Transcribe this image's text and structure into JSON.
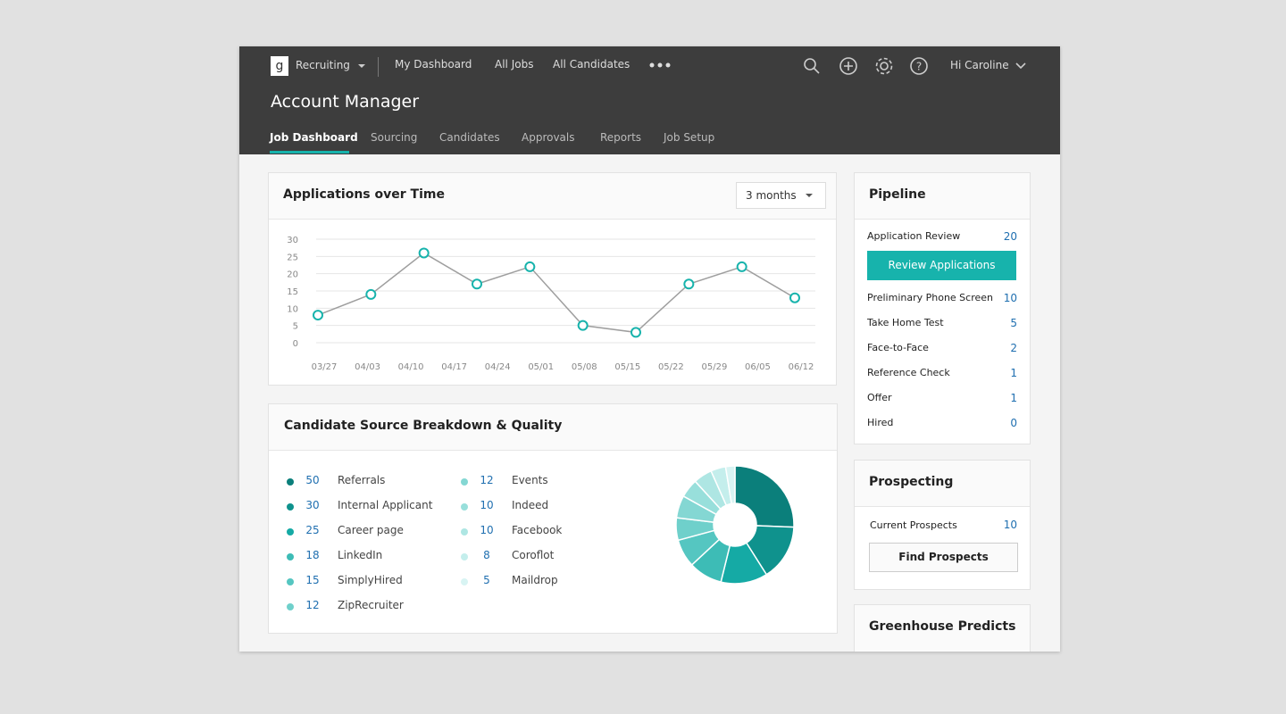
{
  "nav": {
    "logo": "g",
    "product": "Recruiting",
    "links": [
      "My Dashboard",
      "All Jobs",
      "All Candidates"
    ],
    "user": "Hi Caroline"
  },
  "page_title": "Account Manager",
  "tabs": [
    "Job Dashboard",
    "Sourcing",
    "Candidates",
    "Approvals",
    "Reports",
    "Job Setup"
  ],
  "applications": {
    "title": "Applications over Time",
    "range": "3 months"
  },
  "sources": {
    "title": "Candidate Source Breakdown & Quality"
  },
  "chart_data": [
    {
      "type": "line",
      "xticks": [
        "03/27",
        "04/03",
        "04/10",
        "04/17",
        "04/24",
        "05/01",
        "05/08",
        "05/15",
        "05/22",
        "05/29",
        "06/05",
        "06/12"
      ],
      "values": [
        8,
        14,
        26,
        17,
        22,
        5,
        3,
        17,
        22,
        13
      ],
      "color": "#9e9e9e",
      "marker_color": "#17b3ac",
      "ylim": [
        0,
        30
      ],
      "yticks": [
        0,
        5,
        10,
        15,
        20,
        25,
        30
      ],
      "grid": true
    },
    {
      "type": "pie",
      "donut": true,
      "categories": [
        "Referrals",
        "Internal Applicant",
        "Career page",
        "LinkedIn",
        "SimplyHired",
        "ZipRecruiter",
        "Events",
        "Indeed",
        "Facebook",
        "Coroflot",
        "Maildrop"
      ],
      "values": [
        50,
        30,
        25,
        18,
        15,
        12,
        12,
        10,
        10,
        8,
        5
      ],
      "colors": [
        "#0b7f7b",
        "#0f928d",
        "#15aaa5",
        "#3dbcb6",
        "#55c6c1",
        "#6fd0cb",
        "#84d7d3",
        "#98dfdb",
        "#aee6e3",
        "#c4eeec",
        "#d8f4f3"
      ]
    }
  ],
  "pipeline": {
    "title": "Pipeline",
    "button": "Review Applications",
    "stages": [
      {
        "label": "Application Review",
        "count": 20
      },
      {
        "label": "Preliminary Phone Screen",
        "count": 10
      },
      {
        "label": "Take Home Test",
        "count": 5
      },
      {
        "label": "Face-to-Face",
        "count": 2
      },
      {
        "label": "Reference Check",
        "count": 1
      },
      {
        "label": "Offer",
        "count": 1
      },
      {
        "label": "Hired",
        "count": 0
      }
    ]
  },
  "prospecting": {
    "title": "Prospecting",
    "label": "Current Prospects",
    "count": 10,
    "button": "Find Prospects"
  },
  "predicts": {
    "title": "Greenhouse Predicts"
  }
}
